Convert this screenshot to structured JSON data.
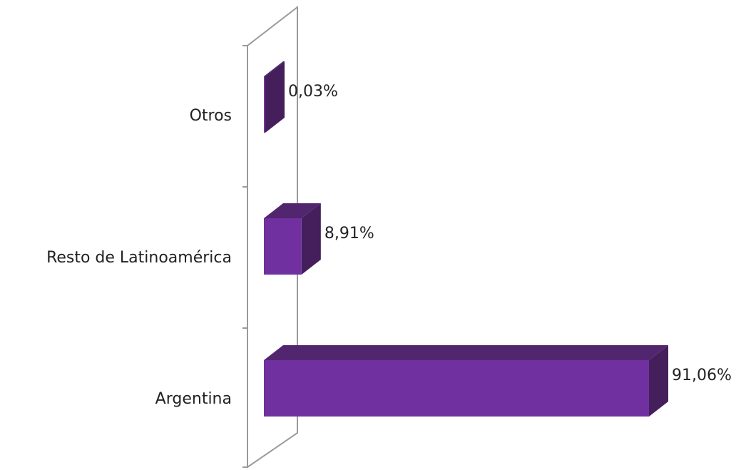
{
  "chart_data": {
    "type": "bar",
    "orientation": "horizontal",
    "style": "3d",
    "categories": [
      "Argentina",
      "Resto de Latinoamérica",
      "Otros"
    ],
    "values": [
      91.06,
      8.91,
      0.03
    ],
    "value_labels": [
      "91,06%",
      "8,91%",
      "0,03%"
    ],
    "title": "",
    "xlabel": "",
    "ylabel": "",
    "xlim": [
      0,
      100
    ],
    "grid": false,
    "legend": "none",
    "colors": {
      "front": "#7030a0",
      "top": "#52266e",
      "side": "#441f5c",
      "axis": "#9a9a9a"
    }
  }
}
